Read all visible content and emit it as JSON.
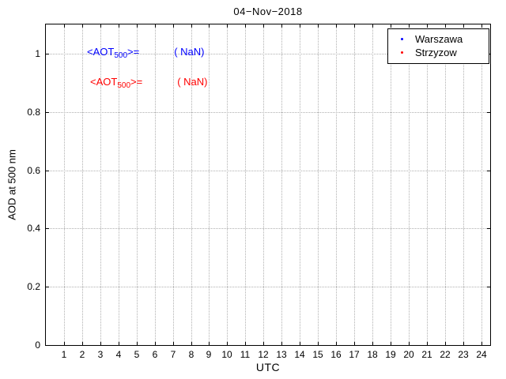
{
  "chart_data": {
    "type": "scatter",
    "title": "04−Nov−2018",
    "xlabel": "UTC",
    "ylabel": "AOD at 500 nm",
    "xlim": [
      0,
      24.5
    ],
    "ylim": [
      0,
      1.1
    ],
    "x_ticks": [
      1,
      2,
      3,
      4,
      5,
      6,
      7,
      8,
      9,
      10,
      11,
      12,
      13,
      14,
      15,
      16,
      17,
      18,
      19,
      20,
      21,
      22,
      23,
      24
    ],
    "y_ticks": [
      0,
      0.2,
      0.4,
      0.6,
      0.8,
      1
    ],
    "grid": true,
    "grid_color": "#b0b0b0",
    "axis_color": "#000000",
    "legend_position": "top-right",
    "series": [
      {
        "name": "Warszawa",
        "color": "#0000ff",
        "marker": "dot",
        "x": [],
        "y": []
      },
      {
        "name": "Strzyzow",
        "color": "#ff0000",
        "marker": "dot",
        "x": [],
        "y": []
      }
    ],
    "annotations": [
      {
        "prefix": "<AOT",
        "sub": "500",
        "suffix": ">=",
        "value": "( NaN)",
        "color": "#0000ff"
      },
      {
        "prefix": "<AOT",
        "sub": "500",
        "suffix": ">=",
        "value": "( NaN)",
        "color": "#ff0000"
      }
    ]
  }
}
